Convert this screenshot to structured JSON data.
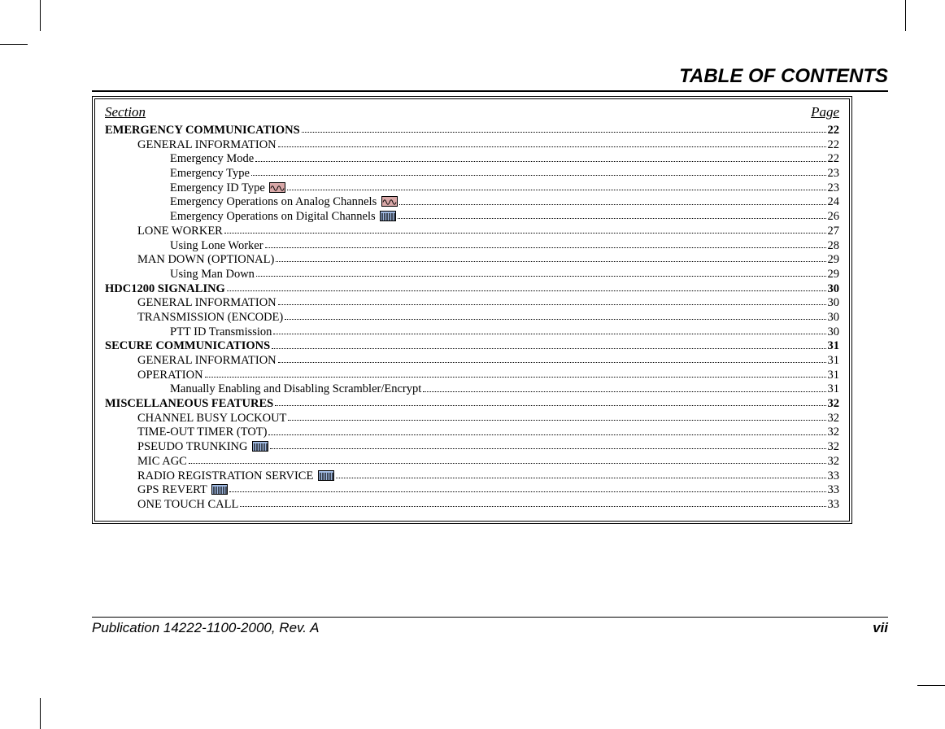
{
  "title": "TABLE OF CONTENTS",
  "section_header": "Section",
  "page_header": "Page",
  "footer_pub": "Publication 14222-1100-2000, Rev. A",
  "footer_page": "vii",
  "colors": {
    "analog_icon_bg": "#d9a8a8",
    "digital_icon_bg": "#9fb8e0",
    "text": "#000000",
    "background": "#ffffff"
  },
  "entries": [
    {
      "label": "EMERGENCY COMMUNICATIONS",
      "page": "22",
      "level": 0,
      "icon": null
    },
    {
      "label": "GENERAL INFORMATION",
      "page": "22",
      "level": 1,
      "icon": null
    },
    {
      "label": "Emergency Mode",
      "page": "22",
      "level": 2,
      "icon": null
    },
    {
      "label": "Emergency Type",
      "page": "23",
      "level": 2,
      "icon": null
    },
    {
      "label": "Emergency ID Type",
      "page": "23",
      "level": 2,
      "icon": "analog"
    },
    {
      "label": "Emergency Operations on Analog Channels",
      "page": "24",
      "level": 2,
      "icon": "analog"
    },
    {
      "label": "Emergency Operations on Digital Channels",
      "page": "26",
      "level": 2,
      "icon": "digital"
    },
    {
      "label": "LONE WORKER",
      "page": "27",
      "level": 1,
      "icon": null
    },
    {
      "label": "Using Lone Worker",
      "page": "28",
      "level": 2,
      "icon": null
    },
    {
      "label": "MAN DOWN (OPTIONAL)",
      "page": "29",
      "level": 1,
      "icon": null
    },
    {
      "label": "Using Man Down",
      "page": "29",
      "level": 2,
      "icon": null
    },
    {
      "label": "HDC1200 SIGNALING",
      "page": "30",
      "level": 0,
      "icon": null
    },
    {
      "label": "GENERAL INFORMATION",
      "page": "30",
      "level": 1,
      "icon": null
    },
    {
      "label": "TRANSMISSION (ENCODE)",
      "page": "30",
      "level": 1,
      "icon": null
    },
    {
      "label": "PTT ID Transmission",
      "page": "30",
      "level": 2,
      "icon": null
    },
    {
      "label": "SECURE COMMUNICATIONS",
      "page": "31",
      "level": 0,
      "icon": null
    },
    {
      "label": "GENERAL INFORMATION",
      "page": "31",
      "level": 1,
      "icon": null
    },
    {
      "label": "OPERATION",
      "page": "31",
      "level": 1,
      "icon": null
    },
    {
      "label": "Manually Enabling and Disabling Scrambler/Encrypt",
      "page": "31",
      "level": 2,
      "icon": null
    },
    {
      "label": "MISCELLANEOUS FEATURES",
      "page": "32",
      "level": 0,
      "icon": null
    },
    {
      "label": "CHANNEL BUSY LOCKOUT",
      "page": "32",
      "level": 1,
      "icon": null
    },
    {
      "label": "TIME-OUT TIMER (TOT)",
      "page": "32",
      "level": 1,
      "icon": null
    },
    {
      "label": "PSEUDO TRUNKING",
      "page": "32",
      "level": 1,
      "icon": "digital"
    },
    {
      "label": "MIC AGC",
      "page": "32",
      "level": 1,
      "icon": null
    },
    {
      "label": "RADIO REGISTRATION SERVICE",
      "page": "33",
      "level": 1,
      "icon": "digital"
    },
    {
      "label": "GPS REVERT",
      "page": "33",
      "level": 1,
      "icon": "digital"
    },
    {
      "label": "ONE TOUCH CALL",
      "page": "33",
      "level": 1,
      "icon": null
    }
  ]
}
